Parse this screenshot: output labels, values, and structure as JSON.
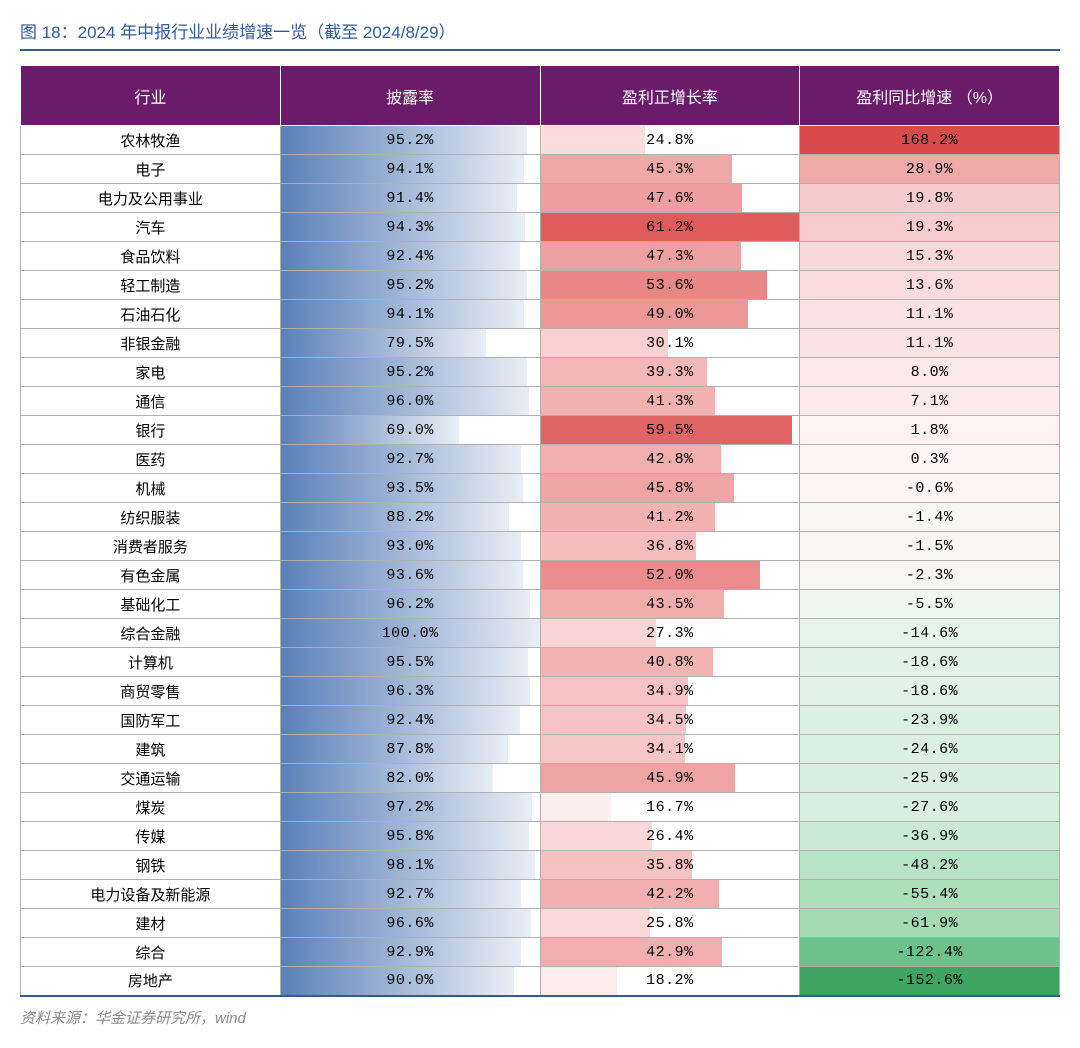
{
  "title": "图 18：2024 年中报行业业绩增速一览（截至 2024/8/29）",
  "source": "资料来源：华金证券研究所，wind",
  "colors": {
    "header_bg": "#6a1b6a",
    "header_text": "#ffffff",
    "title_text": "#2e5aa0",
    "border": "#b0b0b0",
    "bottom_rule": "#2e5aa0"
  },
  "columns": [
    "行业",
    "披露率",
    "盈利正增长率",
    "盈利同比增速\n（%）"
  ],
  "col_styles": {
    "disclosure": {
      "bar_max": 100.0,
      "bar_start_color": "#5a80b8",
      "bar_end_color": "#e9eef6"
    },
    "positive_growth": {
      "bar_max": 61.2,
      "color_scale": [
        {
          "v": 16.7,
          "c": "#fdeeee"
        },
        {
          "v": 30,
          "c": "#f8d0d0"
        },
        {
          "v": 45,
          "c": "#f0a8a8"
        },
        {
          "v": 55,
          "c": "#e88080"
        },
        {
          "v": 61.2,
          "c": "#df5a5a"
        }
      ]
    },
    "yoy_growth": {
      "color_scale": [
        {
          "v": -152.6,
          "c": "#3fa45f"
        },
        {
          "v": -122.4,
          "c": "#6cc28a"
        },
        {
          "v": -60,
          "c": "#a6dcb5"
        },
        {
          "v": -30,
          "c": "#d6eedd"
        },
        {
          "v": -5,
          "c": "#eef7f1"
        },
        {
          "v": 0,
          "c": "#fdf4f4"
        },
        {
          "v": 10,
          "c": "#fbe5e5"
        },
        {
          "v": 20,
          "c": "#f6caca"
        },
        {
          "v": 30,
          "c": "#efa5a5"
        },
        {
          "v": 168.2,
          "c": "#d94a4a"
        }
      ]
    }
  },
  "rows": [
    {
      "name": "农林牧渔",
      "disclosure": 95.2,
      "positive": 24.8,
      "yoy": 168.2
    },
    {
      "name": "电子",
      "disclosure": 94.1,
      "positive": 45.3,
      "yoy": 28.9
    },
    {
      "name": "电力及公用事业",
      "disclosure": 91.4,
      "positive": 47.6,
      "yoy": 19.8
    },
    {
      "name": "汽车",
      "disclosure": 94.3,
      "positive": 61.2,
      "yoy": 19.3
    },
    {
      "name": "食品饮料",
      "disclosure": 92.4,
      "positive": 47.3,
      "yoy": 15.3
    },
    {
      "name": "轻工制造",
      "disclosure": 95.2,
      "positive": 53.6,
      "yoy": 13.6
    },
    {
      "name": "石油石化",
      "disclosure": 94.1,
      "positive": 49.0,
      "yoy": 11.1
    },
    {
      "name": "非银金融",
      "disclosure": 79.5,
      "positive": 30.1,
      "yoy": 11.1
    },
    {
      "name": "家电",
      "disclosure": 95.2,
      "positive": 39.3,
      "yoy": 8.0
    },
    {
      "name": "通信",
      "disclosure": 96.0,
      "positive": 41.3,
      "yoy": 7.1
    },
    {
      "name": "银行",
      "disclosure": 69.0,
      "positive": 59.5,
      "yoy": 1.8
    },
    {
      "name": "医药",
      "disclosure": 92.7,
      "positive": 42.8,
      "yoy": 0.3
    },
    {
      "name": "机械",
      "disclosure": 93.5,
      "positive": 45.8,
      "yoy": -0.6
    },
    {
      "name": "纺织服装",
      "disclosure": 88.2,
      "positive": 41.2,
      "yoy": -1.4
    },
    {
      "name": "消费者服务",
      "disclosure": 93.0,
      "positive": 36.8,
      "yoy": -1.5
    },
    {
      "name": "有色金属",
      "disclosure": 93.6,
      "positive": 52.0,
      "yoy": -2.3
    },
    {
      "name": "基础化工",
      "disclosure": 96.2,
      "positive": 43.5,
      "yoy": -5.5
    },
    {
      "name": "综合金融",
      "disclosure": 100.0,
      "positive": 27.3,
      "yoy": -14.6
    },
    {
      "name": "计算机",
      "disclosure": 95.5,
      "positive": 40.8,
      "yoy": -18.6
    },
    {
      "name": "商贸零售",
      "disclosure": 96.3,
      "positive": 34.9,
      "yoy": -18.6
    },
    {
      "name": "国防军工",
      "disclosure": 92.4,
      "positive": 34.5,
      "yoy": -23.9
    },
    {
      "name": "建筑",
      "disclosure": 87.8,
      "positive": 34.1,
      "yoy": -24.6
    },
    {
      "name": "交通运输",
      "disclosure": 82.0,
      "positive": 45.9,
      "yoy": -25.9
    },
    {
      "name": "煤炭",
      "disclosure": 97.2,
      "positive": 16.7,
      "yoy": -27.6
    },
    {
      "name": "传媒",
      "disclosure": 95.8,
      "positive": 26.4,
      "yoy": -36.9
    },
    {
      "name": "钢铁",
      "disclosure": 98.1,
      "positive": 35.8,
      "yoy": -48.2
    },
    {
      "name": "电力设备及新能源",
      "disclosure": 92.7,
      "positive": 42.2,
      "yoy": -55.4
    },
    {
      "name": "建材",
      "disclosure": 96.6,
      "positive": 25.8,
      "yoy": -61.9
    },
    {
      "name": "综合",
      "disclosure": 92.9,
      "positive": 42.9,
      "yoy": -122.4
    },
    {
      "name": "房地产",
      "disclosure": 90.0,
      "positive": 18.2,
      "yoy": -152.6
    }
  ]
}
